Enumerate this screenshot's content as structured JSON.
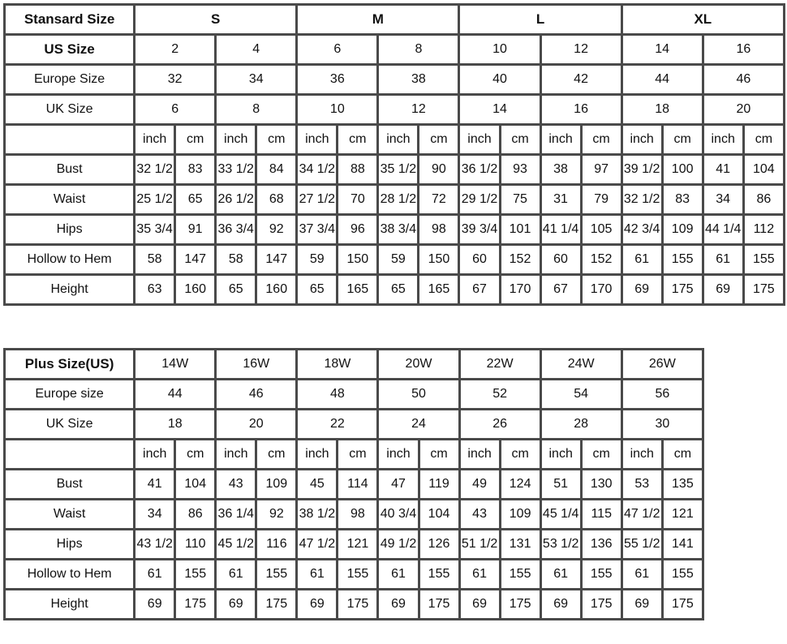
{
  "standard": {
    "header_label": "Stansard Size",
    "groups": [
      "S",
      "M",
      "L",
      "XL"
    ],
    "us_label": "US Size",
    "us": [
      "2",
      "4",
      "6",
      "8",
      "10",
      "12",
      "14",
      "16"
    ],
    "europe_label": "Europe Size",
    "europe": [
      "32",
      "34",
      "36",
      "38",
      "40",
      "42",
      "44",
      "46"
    ],
    "uk_label": "UK Size",
    "uk": [
      "6",
      "8",
      "10",
      "12",
      "14",
      "16",
      "18",
      "20"
    ],
    "unit_labels": [
      "inch",
      "cm"
    ],
    "measurements": [
      {
        "label": "Bust",
        "values": [
          "32 1/2",
          "83",
          "33 1/2",
          "84",
          "34 1/2",
          "88",
          "35 1/2",
          "90",
          "36 1/2",
          "93",
          "38",
          "97",
          "39 1/2",
          "100",
          "41",
          "104"
        ]
      },
      {
        "label": "Waist",
        "values": [
          "25 1/2",
          "65",
          "26 1/2",
          "68",
          "27 1/2",
          "70",
          "28 1/2",
          "72",
          "29 1/2",
          "75",
          "31",
          "79",
          "32 1/2",
          "83",
          "34",
          "86"
        ]
      },
      {
        "label": "Hips",
        "values": [
          "35 3/4",
          "91",
          "36 3/4",
          "92",
          "37 3/4",
          "96",
          "38 3/4",
          "98",
          "39 3/4",
          "101",
          "41 1/4",
          "105",
          "42 3/4",
          "109",
          "44 1/4",
          "112"
        ]
      },
      {
        "label": "Hollow to Hem",
        "values": [
          "58",
          "147",
          "58",
          "147",
          "59",
          "150",
          "59",
          "150",
          "60",
          "152",
          "60",
          "152",
          "61",
          "155",
          "61",
          "155"
        ]
      },
      {
        "label": "Height",
        "values": [
          "63",
          "160",
          "65",
          "160",
          "65",
          "165",
          "65",
          "165",
          "67",
          "170",
          "67",
          "170",
          "69",
          "175",
          "69",
          "175"
        ]
      }
    ]
  },
  "plus": {
    "header_label": "Plus Size(US)",
    "sizes": [
      "14W",
      "16W",
      "18W",
      "20W",
      "22W",
      "24W",
      "26W"
    ],
    "europe_label": "Europe size",
    "europe": [
      "44",
      "46",
      "48",
      "50",
      "52",
      "54",
      "56"
    ],
    "uk_label": "UK Size",
    "uk": [
      "18",
      "20",
      "22",
      "24",
      "26",
      "28",
      "30"
    ],
    "unit_labels": [
      "inch",
      "cm"
    ],
    "measurements": [
      {
        "label": "Bust",
        "values": [
          "41",
          "104",
          "43",
          "109",
          "45",
          "114",
          "47",
          "119",
          "49",
          "124",
          "51",
          "130",
          "53",
          "135"
        ]
      },
      {
        "label": "Waist",
        "values": [
          "34",
          "86",
          "36 1/4",
          "92",
          "38 1/2",
          "98",
          "40 3/4",
          "104",
          "43",
          "109",
          "45 1/4",
          "115",
          "47 1/2",
          "121"
        ]
      },
      {
        "label": "Hips",
        "values": [
          "43 1/2",
          "110",
          "45 1/2",
          "116",
          "47 1/2",
          "121",
          "49 1/2",
          "126",
          "51 1/2",
          "131",
          "53 1/2",
          "136",
          "55 1/2",
          "141"
        ]
      },
      {
        "label": "Hollow to Hem",
        "values": [
          "61",
          "155",
          "61",
          "155",
          "61",
          "155",
          "61",
          "155",
          "61",
          "155",
          "61",
          "155",
          "61",
          "155"
        ]
      },
      {
        "label": "Height",
        "values": [
          "69",
          "175",
          "69",
          "175",
          "69",
          "175",
          "69",
          "175",
          "69",
          "175",
          "69",
          "175",
          "69",
          "175"
        ]
      }
    ]
  }
}
